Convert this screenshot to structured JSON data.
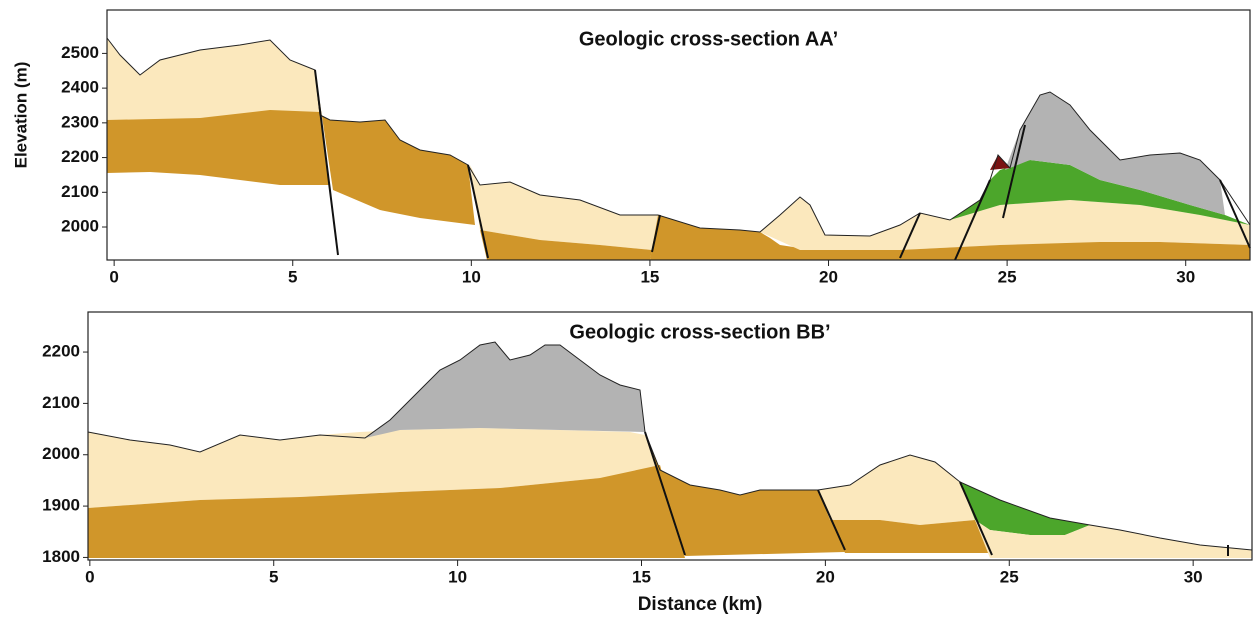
{
  "chart_data": [
    {
      "type": "cross-section",
      "title": "Geologic cross-section AA’",
      "y_label": "Elevation (m)",
      "xlim": [
        -0.2,
        31.8
      ],
      "ylim": [
        1905,
        2625
      ],
      "xticks": [
        0,
        5,
        10,
        15,
        20,
        25,
        30
      ],
      "yticks": [
        2000,
        2100,
        2200,
        2300,
        2400,
        2500
      ]
    },
    {
      "type": "cross-section",
      "title": "Geologic cross-section BB’",
      "x_label": "Distance (km)",
      "xlim": [
        -0.05,
        31.6
      ],
      "ylim": [
        1795,
        2278
      ],
      "xticks": [
        0,
        5,
        10,
        15,
        20,
        25,
        30
      ],
      "yticks": [
        1800,
        1900,
        2000,
        2100,
        2200
      ]
    }
  ]
}
